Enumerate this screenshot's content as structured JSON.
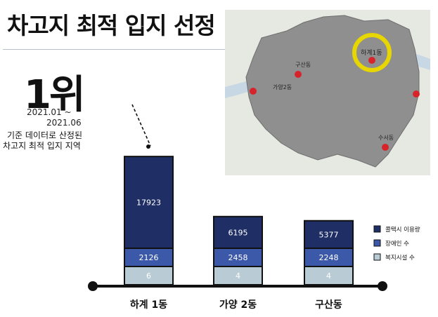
{
  "title": "차고지 최적 입지 선정",
  "rank": "1위",
  "period_start": "2021.01 ~",
  "period_end": "2021.06",
  "note_line1": "기준 데이터로 산정된",
  "note_line2": "차고지 최적 입지 지역",
  "map": {
    "labels": [
      "하계1동",
      "구산동",
      "가양2동",
      "수서동"
    ],
    "highlight_color": "#e8d600",
    "district_fill": "#8f8f8f",
    "marker_color": "#d6242a"
  },
  "colors": {
    "series1": "#1f2f66",
    "series2": "#3c58a8",
    "series3": "#b9ccd6",
    "axis": "#111111"
  },
  "chart_data": {
    "type": "bar",
    "stacked": true,
    "categories": [
      "하계 1동",
      "가양 2동",
      "구산동"
    ],
    "series": [
      {
        "name": "복지시설 수",
        "values": [
          6,
          4,
          4
        ]
      },
      {
        "name": "장애인 수",
        "values": [
          2126,
          2458,
          2248
        ]
      },
      {
        "name": "콜택시 이용량",
        "values": [
          17923,
          6195,
          5377
        ]
      }
    ],
    "legend_position": "right",
    "grid": false
  }
}
